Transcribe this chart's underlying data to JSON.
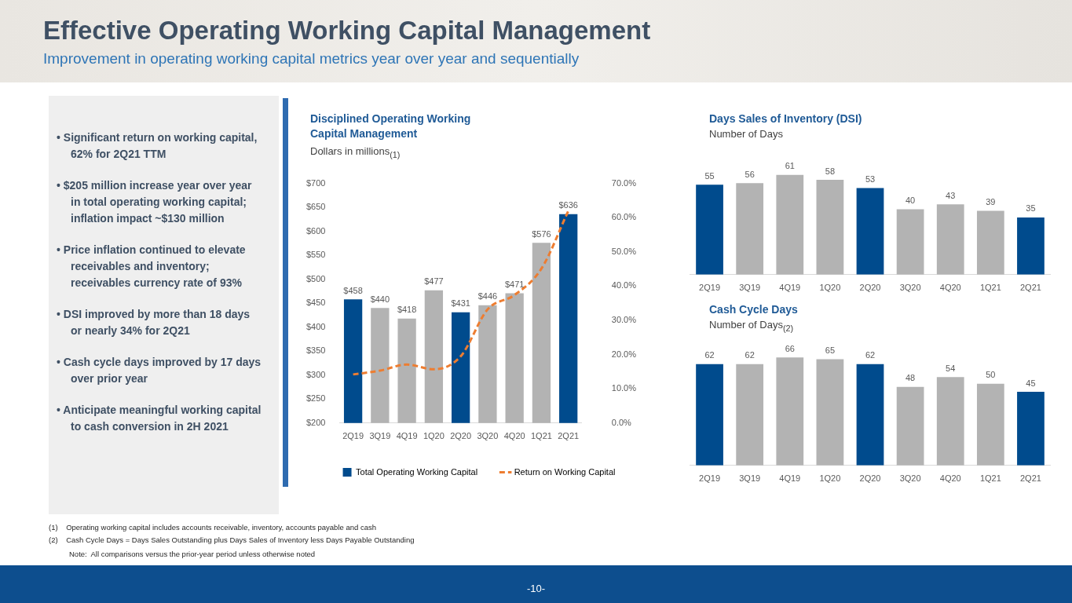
{
  "chart_data": [
    {
      "type": "other",
      "title": "Effective Operating Working Capital Management",
      "subtitle": "Improvement in operating working capital metrics year over year and sequentially",
      "annotations": [
        "• Significant return on working capital, 62% for 2Q21 TTM",
        "• $205 million increase year over year in total operating working capital; inflation impact ~$130 million",
        "• Price inflation continued to elevate receivables and inventory; receivables currency rate of 93%",
        "• DSI improved by more than 18 days or nearly 34% for 2Q21",
        "• Cash cycle days improved by 17 days over prior year",
        "• Anticipate meaningful working capital to cash conversion in 2H 2021",
        "(1)    Operating working capital includes accounts receivable, inventory, accounts payable and cash",
        "(2)    Cash Cycle Days = Days Sales Outstanding plus Days Sales of Inventory less Days Payable Outstanding",
        "Note:  All comparisons versus the prior-year period unless otherwise noted",
        "-10-"
      ]
    },
    {
      "type": "bar",
      "title": "Disciplined Operating Working Capital Management",
      "subtitle": "Dollars in millions$_{(1)}$",
      "categories": [
        "2Q19",
        "3Q19",
        "4Q19",
        "1Q20",
        "2Q20",
        "3Q20",
        "4Q20",
        "1Q21",
        "2Q21"
      ],
      "series": [
        {
          "name": "Total Operating Working Capital",
          "type": "bar",
          "color": "#004b8d",
          "colors": [
            "#004b8d",
            "#b3b3b3",
            "#b3b3b3",
            "#b3b3b3",
            "#004b8d",
            "#b3b3b3",
            "#b3b3b3",
            "#b3b3b3",
            "#004b8d"
          ],
          "values": [
            458,
            440,
            418,
            477,
            431,
            446,
            471,
            576,
            636
          ],
          "value_labels": [
            "$458",
            "$440",
            "$418",
            "$477",
            "$431",
            "$446",
            "$471",
            "$576",
            "$636"
          ]
        },
        {
          "name": "Return on Working Capital",
          "type": "line",
          "axis": "y2",
          "color": "#ed7d31",
          "line_style": "dashed",
          "marker": "none",
          "values": [
            14.2,
            15.3,
            17.1,
            15.7,
            19.5,
            33.2,
            37.4,
            45.1,
            62
          ]
        }
      ],
      "ylim": [
        200,
        700
      ],
      "yticks": [
        {
          "value": 200,
          "label": "$200"
        },
        {
          "value": 250,
          "label": "$250"
        },
        {
          "value": 300,
          "label": "$300"
        },
        {
          "value": 350,
          "label": "$350"
        },
        {
          "value": 400,
          "label": "$400"
        },
        {
          "value": 450,
          "label": "$450"
        },
        {
          "value": 500,
          "label": "$500"
        },
        {
          "value": 550,
          "label": "$550"
        },
        {
          "value": 600,
          "label": "$600"
        },
        {
          "value": 650,
          "label": "$650"
        },
        {
          "value": 700,
          "label": "$700"
        }
      ],
      "y2lim": [
        0,
        70
      ],
      "y2ticks": [
        {
          "value": 0,
          "label": "0.0%"
        },
        {
          "value": 10,
          "label": "10.0%"
        },
        {
          "value": 20,
          "label": "20.0%"
        },
        {
          "value": 30,
          "label": "30.0%"
        },
        {
          "value": 40,
          "label": "40.0%"
        },
        {
          "value": 50,
          "label": "50.0%"
        },
        {
          "value": 60,
          "label": "60.0%"
        },
        {
          "value": 70,
          "label": "70.0%"
        }
      ],
      "legend": "bottom",
      "grid": false
    },
    {
      "type": "bar",
      "title": "Days Sales of Inventory (DSI)",
      "subtitle": "Number of Days",
      "categories": [
        "2Q19",
        "3Q19",
        "4Q19",
        "1Q20",
        "2Q20",
        "3Q20",
        "4Q20",
        "1Q21",
        "2Q21"
      ],
      "values": [
        55,
        56,
        61,
        58,
        53,
        40,
        43,
        39,
        35
      ],
      "colors": [
        "#004b8d",
        "#b3b3b3",
        "#b3b3b3",
        "#b3b3b3",
        "#004b8d",
        "#b3b3b3",
        "#b3b3b3",
        "#b3b3b3",
        "#004b8d"
      ],
      "data_labels": true,
      "grid": false
    },
    {
      "type": "bar",
      "title": "Cash Cycle Days",
      "subtitle": "Number of Days$_{(2)}$",
      "categories": [
        "2Q19",
        "3Q19",
        "4Q19",
        "1Q20",
        "2Q20",
        "3Q20",
        "4Q20",
        "1Q21",
        "2Q21"
      ],
      "values": [
        62,
        62,
        66,
        65,
        62,
        48,
        54,
        50,
        45
      ],
      "colors": [
        "#004b8d",
        "#b3b3b3",
        "#b3b3b3",
        "#b3b3b3",
        "#004b8d",
        "#b3b3b3",
        "#b3b3b3",
        "#b3b3b3",
        "#004b8d"
      ],
      "data_labels": true,
      "grid": false
    }
  ]
}
